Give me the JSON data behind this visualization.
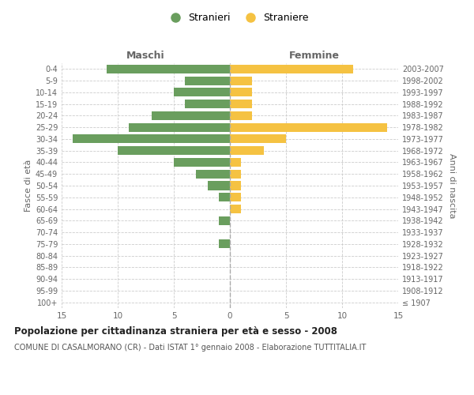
{
  "age_groups": [
    "100+",
    "95-99",
    "90-94",
    "85-89",
    "80-84",
    "75-79",
    "70-74",
    "65-69",
    "60-64",
    "55-59",
    "50-54",
    "45-49",
    "40-44",
    "35-39",
    "30-34",
    "25-29",
    "20-24",
    "15-19",
    "10-14",
    "5-9",
    "0-4"
  ],
  "birth_years": [
    "≤ 1907",
    "1908-1912",
    "1913-1917",
    "1918-1922",
    "1923-1927",
    "1928-1932",
    "1933-1937",
    "1938-1942",
    "1943-1947",
    "1948-1952",
    "1953-1957",
    "1958-1962",
    "1963-1967",
    "1968-1972",
    "1973-1977",
    "1978-1982",
    "1983-1987",
    "1988-1992",
    "1993-1997",
    "1998-2002",
    "2003-2007"
  ],
  "maschi": [
    0,
    0,
    0,
    0,
    0,
    1,
    0,
    1,
    0,
    1,
    2,
    3,
    5,
    10,
    14,
    9,
    7,
    4,
    5,
    4,
    11
  ],
  "femmine": [
    0,
    0,
    0,
    0,
    0,
    0,
    0,
    0,
    1,
    1,
    1,
    1,
    1,
    3,
    5,
    14,
    2,
    2,
    2,
    2,
    11
  ],
  "color_maschi": "#6a9e5e",
  "color_femmine": "#f5c242",
  "title_main": "Popolazione per cittadinanza straniera per età e sesso - 2008",
  "title_sub": "COMUNE DI CASALMORANO (CR) - Dati ISTAT 1° gennaio 2008 - Elaborazione TUTTITALIA.IT",
  "ylabel_left": "Fasce di età",
  "ylabel_right": "Anni di nascita",
  "xlabel_left": "Maschi",
  "xlabel_right": "Femmine",
  "legend_maschi": "Stranieri",
  "legend_femmine": "Straniere",
  "xlim": 15,
  "background_color": "#ffffff",
  "grid_color": "#cccccc",
  "bar_height": 0.75
}
